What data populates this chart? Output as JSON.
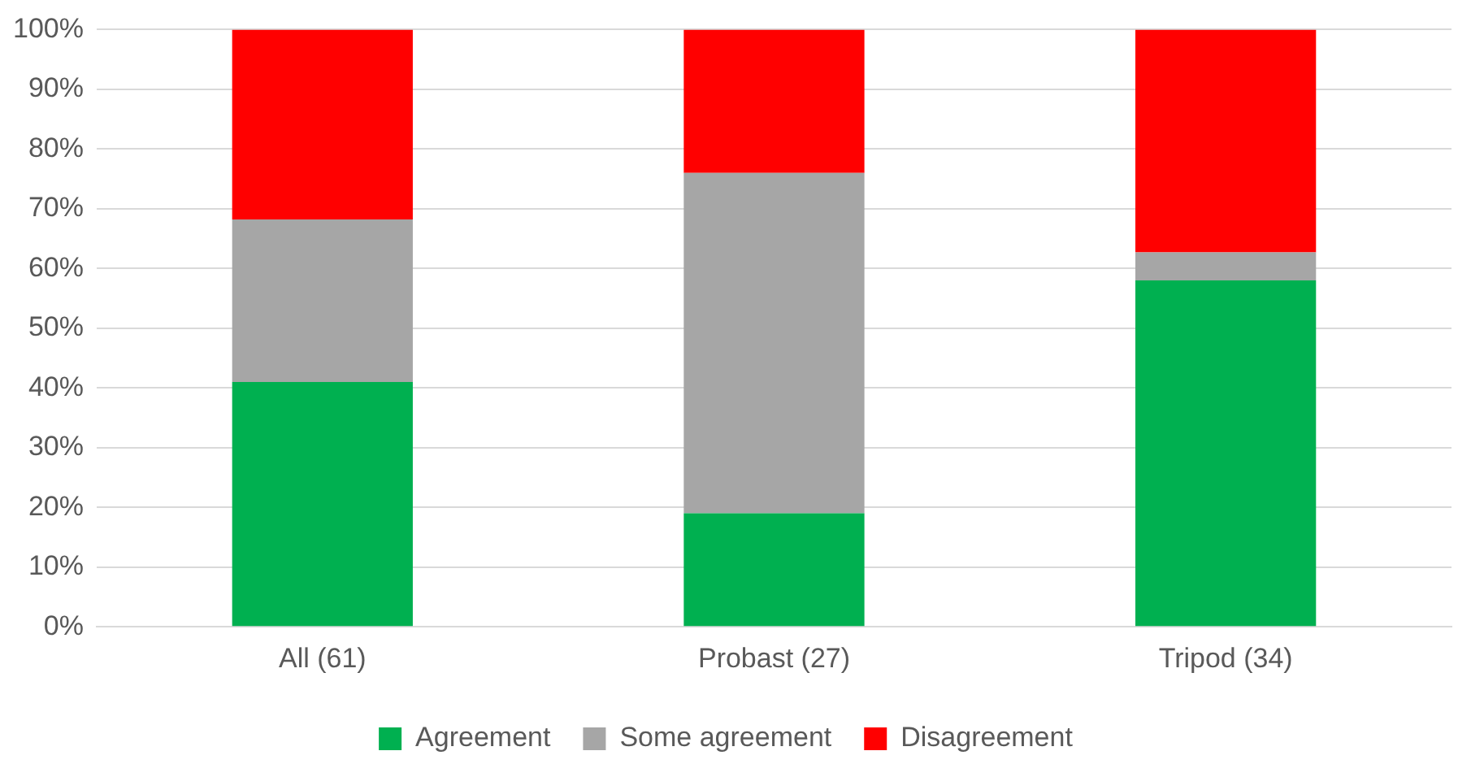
{
  "chart_data": {
    "type": "bar",
    "stacked": true,
    "categories": [
      "All (61)",
      "Probast (27)",
      "Tripod (34)"
    ],
    "series": [
      {
        "name": "Agreement",
        "color": "#00b050",
        "values": [
          41,
          19,
          58
        ]
      },
      {
        "name": "Some agreement",
        "color": "#a6a6a6",
        "values": [
          27.2,
          57,
          4.7
        ]
      },
      {
        "name": "Disagreement",
        "color": "#ff0000",
        "values": [
          31.8,
          24,
          37.3
        ]
      }
    ],
    "ylim": [
      0,
      100
    ],
    "yticks": [
      {
        "value": 0,
        "label": "0%"
      },
      {
        "value": 10,
        "label": "10%"
      },
      {
        "value": 20,
        "label": "20%"
      },
      {
        "value": 30,
        "label": "30%"
      },
      {
        "value": 40,
        "label": "40%"
      },
      {
        "value": 50,
        "label": "50%"
      },
      {
        "value": 60,
        "label": "60%"
      },
      {
        "value": 70,
        "label": "70%"
      },
      {
        "value": 80,
        "label": "80%"
      },
      {
        "value": 90,
        "label": "90%"
      },
      {
        "value": 100,
        "label": "100%"
      }
    ],
    "grid": "y",
    "legend": "bottom"
  }
}
